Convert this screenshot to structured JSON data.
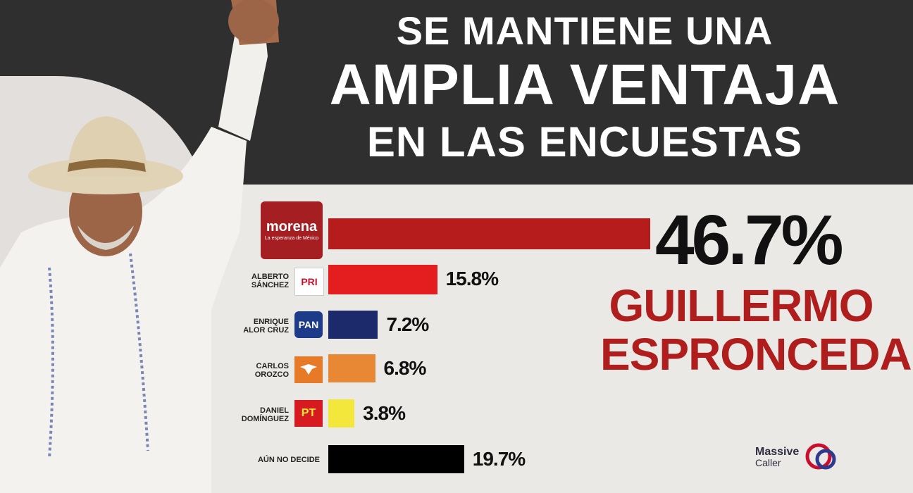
{
  "headline": {
    "line1": "SE MANTIENE UNA",
    "line2": "AMPLIA VENTAJA",
    "line3": "EN LAS ENCUESTAS"
  },
  "winner": {
    "percent": "46.7%",
    "name_line1": "GUILLERMO",
    "name_line2": "ESPRONCEDA"
  },
  "logos": {
    "morena_main": "morena",
    "morena_sub": "La esperanza de México",
    "pri": "PRI",
    "pan": "PAN",
    "pt": "PT"
  },
  "brand": {
    "line1": "Massive",
    "line2": "Caller"
  },
  "chart_data": {
    "type": "bar",
    "orientation": "horizontal",
    "categories": [
      "morena",
      "ALBERTO SÁNCHEZ",
      "ENRIQUE ALOR CRUZ",
      "CARLOS OROZCO",
      "DANIEL DOMÍNGUEZ",
      "AÚN NO DECIDE"
    ],
    "values": [
      46.7,
      15.8,
      7.2,
      6.8,
      3.8,
      19.7
    ],
    "value_labels": [
      "46.7%",
      "15.8%",
      "7.2%",
      "6.8%",
      "3.8%",
      "19.7%"
    ],
    "colors": [
      "#b71c1c",
      "#e41e1e",
      "#1c2a6b",
      "#e98834",
      "#f2e73a",
      "#000000"
    ]
  },
  "rows": [
    {
      "label_1": "",
      "label_2": "",
      "value": "46.7%"
    },
    {
      "label_1": "ALBERTO",
      "label_2": "SÁNCHEZ",
      "value": "15.8%"
    },
    {
      "label_1": "ENRIQUE",
      "label_2": "ALOR CRUZ",
      "value": "7.2%"
    },
    {
      "label_1": "CARLOS",
      "label_2": "OROZCO",
      "value": "6.8%"
    },
    {
      "label_1": "DANIEL",
      "label_2": "DOMÍNGUEZ",
      "value": "3.8%"
    },
    {
      "label_1": "AÚN NO DECIDE",
      "label_2": "",
      "value": "19.7%"
    }
  ]
}
